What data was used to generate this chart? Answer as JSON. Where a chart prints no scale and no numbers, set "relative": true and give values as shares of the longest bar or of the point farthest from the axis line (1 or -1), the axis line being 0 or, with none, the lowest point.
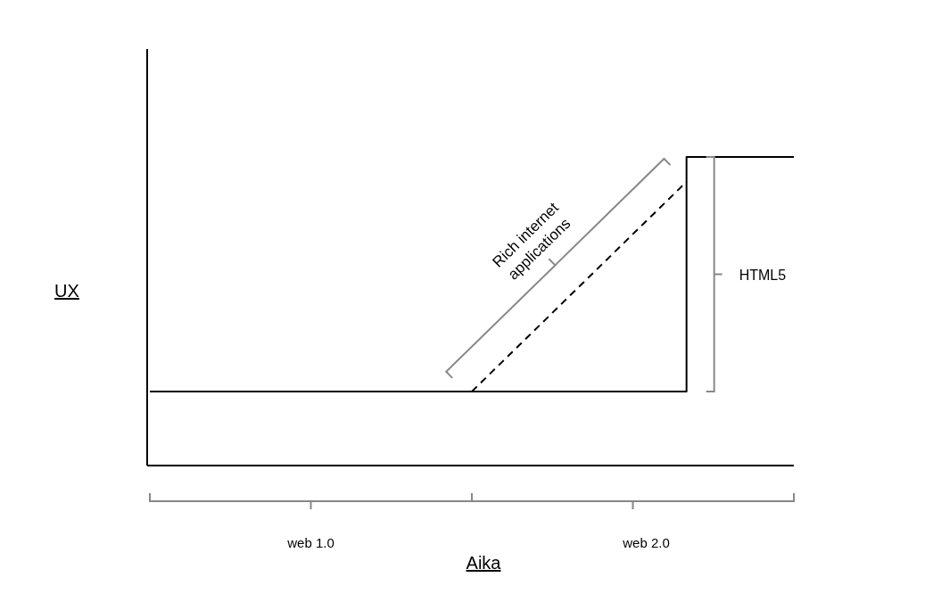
{
  "chart_data": {
    "type": "step",
    "relative": true,
    "xlabel": "Aika",
    "ylabel": "UX",
    "categories": [
      null,
      null,
      null,
      null,
      null,
      null,
      null,
      null,
      null,
      null,
      null,
      null,
      null,
      null,
      null,
      null,
      null,
      null,
      null,
      null,
      null,
      null,
      null,
      null,
      null
    ],
    "series": [
      {
        "color": "#000000",
        "line_style": "solid",
        "values": [
          0.24,
          0.24,
          0.24,
          0.24,
          0.24,
          0.24,
          0.24,
          0.24,
          0.24,
          0.24,
          0.24,
          0.24,
          0.24,
          0.24,
          0.24,
          0.24,
          0.24,
          0.24,
          0.24,
          0.24,
          1,
          1,
          1,
          1,
          1
        ]
      },
      {
        "type": "line",
        "color": "#000000",
        "line_style": "dashed",
        "values": [
          null,
          null,
          null,
          null,
          null,
          null,
          null,
          null,
          null,
          null,
          null,
          null,
          0.24,
          null,
          null,
          null,
          null,
          null,
          null,
          null,
          0.92,
          null,
          null,
          null,
          null
        ]
      }
    ],
    "annotations": [
      "Rich internet applications",
      "HTML5",
      "web 1.0",
      "web 2.0"
    ]
  }
}
